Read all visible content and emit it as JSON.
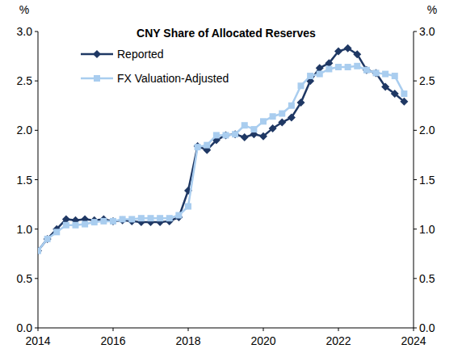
{
  "chart_data": {
    "type": "line",
    "title": "CNY Share of Allocated Reserves",
    "ylabel": "%",
    "y2label": "%",
    "x": [
      2014.0,
      2014.25,
      2014.5,
      2014.75,
      2015.0,
      2015.25,
      2015.5,
      2015.75,
      2016.0,
      2016.25,
      2016.5,
      2016.75,
      2017.0,
      2017.25,
      2017.5,
      2017.75,
      2018.0,
      2018.25,
      2018.5,
      2018.75,
      2019.0,
      2019.25,
      2019.5,
      2019.75,
      2020.0,
      2020.25,
      2020.5,
      2020.75,
      2021.0,
      2021.25,
      2021.5,
      2021.75,
      2022.0,
      2022.25,
      2022.5,
      2022.75,
      2023.0,
      2023.25,
      2023.5,
      2023.75
    ],
    "series": [
      {
        "name": "Reported",
        "color": "#1f3864",
        "marker": "diamond",
        "values": [
          0.78,
          0.9,
          1.0,
          1.1,
          1.09,
          1.1,
          1.09,
          1.1,
          1.08,
          1.09,
          1.08,
          1.07,
          1.07,
          1.07,
          1.08,
          1.12,
          1.39,
          1.84,
          1.8,
          1.9,
          1.95,
          1.96,
          1.93,
          1.96,
          1.94,
          2.02,
          2.08,
          2.13,
          2.28,
          2.5,
          2.63,
          2.68,
          2.8,
          2.83,
          2.77,
          2.61,
          2.58,
          2.44,
          2.37,
          2.29
        ]
      },
      {
        "name": "FX Valuation-Adjusted",
        "color": "#a9cdef",
        "marker": "square",
        "values": [
          0.78,
          0.9,
          0.97,
          1.04,
          1.04,
          1.05,
          1.07,
          1.08,
          1.08,
          1.1,
          1.1,
          1.11,
          1.11,
          1.11,
          1.11,
          1.14,
          1.23,
          1.83,
          1.85,
          1.95,
          1.95,
          1.96,
          2.05,
          2.01,
          2.09,
          2.14,
          2.17,
          2.25,
          2.45,
          2.55,
          2.57,
          2.62,
          2.64,
          2.64,
          2.65,
          2.61,
          2.58,
          2.57,
          2.55,
          2.37
        ]
      }
    ],
    "xlim": [
      2014,
      2024
    ],
    "xticks": [
      2014,
      2016,
      2018,
      2020,
      2022,
      2024
    ],
    "ylim": [
      0,
      3
    ],
    "yticks": [
      {
        "value": 0,
        "label": "0.0"
      },
      0.5,
      {
        "value": 1,
        "label": "1.0"
      },
      1.5,
      {
        "value": 2,
        "label": "2.0"
      },
      2.5,
      {
        "value": 3,
        "label": "3.0"
      }
    ],
    "y2lim": [
      0,
      3
    ],
    "y2ticks": [
      {
        "value": 0,
        "label": "0.0"
      },
      0.5,
      {
        "value": 1,
        "label": "1.0"
      },
      1.5,
      {
        "value": 2,
        "label": "2.0"
      },
      2.5,
      {
        "value": 3,
        "label": "3.0"
      }
    ],
    "grid": false,
    "legend": "top-left"
  }
}
